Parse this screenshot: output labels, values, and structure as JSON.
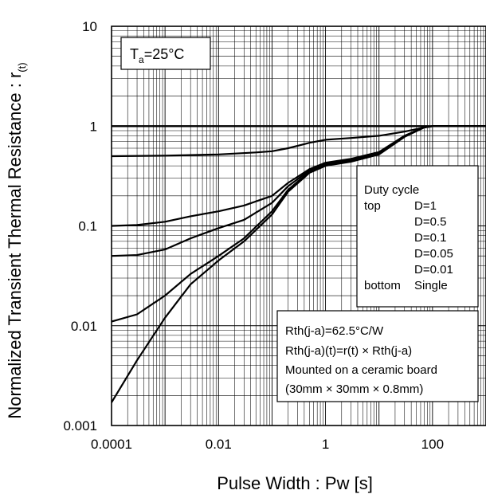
{
  "chart_data": {
    "type": "line",
    "title": "",
    "xlabel": "Pulse Width : Pw [s]",
    "ylabel_main": "Normalized Transient Thermal Resistance : r",
    "ylabel_sub": "(t)",
    "x_scale": "log",
    "y_scale": "log",
    "xlim": [
      0.0001,
      1000
    ],
    "ylim": [
      0.001,
      10
    ],
    "x_tick_labels": [
      "0.0001",
      "0.01",
      "1",
      "100"
    ],
    "x_tick_values": [
      0.0001,
      0.01,
      1,
      100
    ],
    "y_tick_labels": [
      "0.001",
      "0.01",
      "0.1",
      "1",
      "10"
    ],
    "y_tick_values": [
      0.001,
      0.01,
      0.1,
      1,
      10
    ],
    "grid": true,
    "condition": {
      "main": "T",
      "sub": "a",
      "rest": "=25°C"
    },
    "legend": {
      "placement": "right",
      "title": "Duty cycle",
      "rows": [
        {
          "pos": "top",
          "label": "D=1"
        },
        {
          "pos": "",
          "label": "D=0.5"
        },
        {
          "pos": "",
          "label": "D=0.1"
        },
        {
          "pos": "",
          "label": "D=0.05"
        },
        {
          "pos": "",
          "label": "D=0.01"
        },
        {
          "pos": "bottom",
          "label": "Single"
        }
      ]
    },
    "notes": [
      "Rth(j-a)=62.5°C/W",
      "Rth(j-a)(t)=r(t) × Rth(j-a)",
      "Mounted on a ceramic board",
      "(30mm × 30mm × 0.8mm)"
    ],
    "series": [
      {
        "name": "D=1",
        "x": [
          0.0001,
          1000
        ],
        "y": [
          1,
          1
        ]
      },
      {
        "name": "D=0.5",
        "x": [
          0.0001,
          0.001,
          0.01,
          0.05,
          0.1,
          0.2,
          0.5,
          1,
          3,
          10,
          30,
          70,
          100,
          1000
        ],
        "y": [
          0.5,
          0.505,
          0.52,
          0.545,
          0.56,
          0.6,
          0.68,
          0.73,
          0.76,
          0.8,
          0.88,
          0.97,
          1,
          1
        ]
      },
      {
        "name": "D=0.1",
        "x": [
          0.0001,
          0.0003,
          0.001,
          0.003,
          0.01,
          0.03,
          0.1,
          0.2,
          0.5,
          1,
          3,
          10,
          30,
          70,
          100,
          1000
        ],
        "y": [
          0.1,
          0.102,
          0.11,
          0.125,
          0.14,
          0.16,
          0.2,
          0.27,
          0.37,
          0.43,
          0.47,
          0.55,
          0.8,
          0.97,
          1,
          1
        ]
      },
      {
        "name": "D=0.05",
        "x": [
          0.0001,
          0.0003,
          0.001,
          0.003,
          0.01,
          0.03,
          0.1,
          0.2,
          0.5,
          1,
          3,
          10,
          30,
          70,
          100,
          1000
        ],
        "y": [
          0.05,
          0.051,
          0.058,
          0.075,
          0.095,
          0.115,
          0.17,
          0.25,
          0.36,
          0.42,
          0.46,
          0.54,
          0.8,
          0.97,
          1,
          1
        ]
      },
      {
        "name": "D=0.01",
        "x": [
          0.0001,
          0.0003,
          0.001,
          0.003,
          0.01,
          0.03,
          0.1,
          0.2,
          0.5,
          1,
          3,
          10,
          30,
          70,
          100,
          1000
        ],
        "y": [
          0.011,
          0.013,
          0.02,
          0.033,
          0.05,
          0.075,
          0.14,
          0.23,
          0.35,
          0.41,
          0.45,
          0.53,
          0.79,
          0.97,
          1,
          1
        ]
      },
      {
        "name": "Single",
        "x": [
          0.0001,
          0.0003,
          0.001,
          0.003,
          0.01,
          0.03,
          0.1,
          0.2,
          0.5,
          1,
          3,
          10,
          30,
          70,
          100,
          1000
        ],
        "y": [
          0.0017,
          0.0045,
          0.012,
          0.026,
          0.045,
          0.07,
          0.13,
          0.22,
          0.34,
          0.4,
          0.44,
          0.52,
          0.78,
          0.97,
          1,
          1
        ]
      }
    ]
  }
}
